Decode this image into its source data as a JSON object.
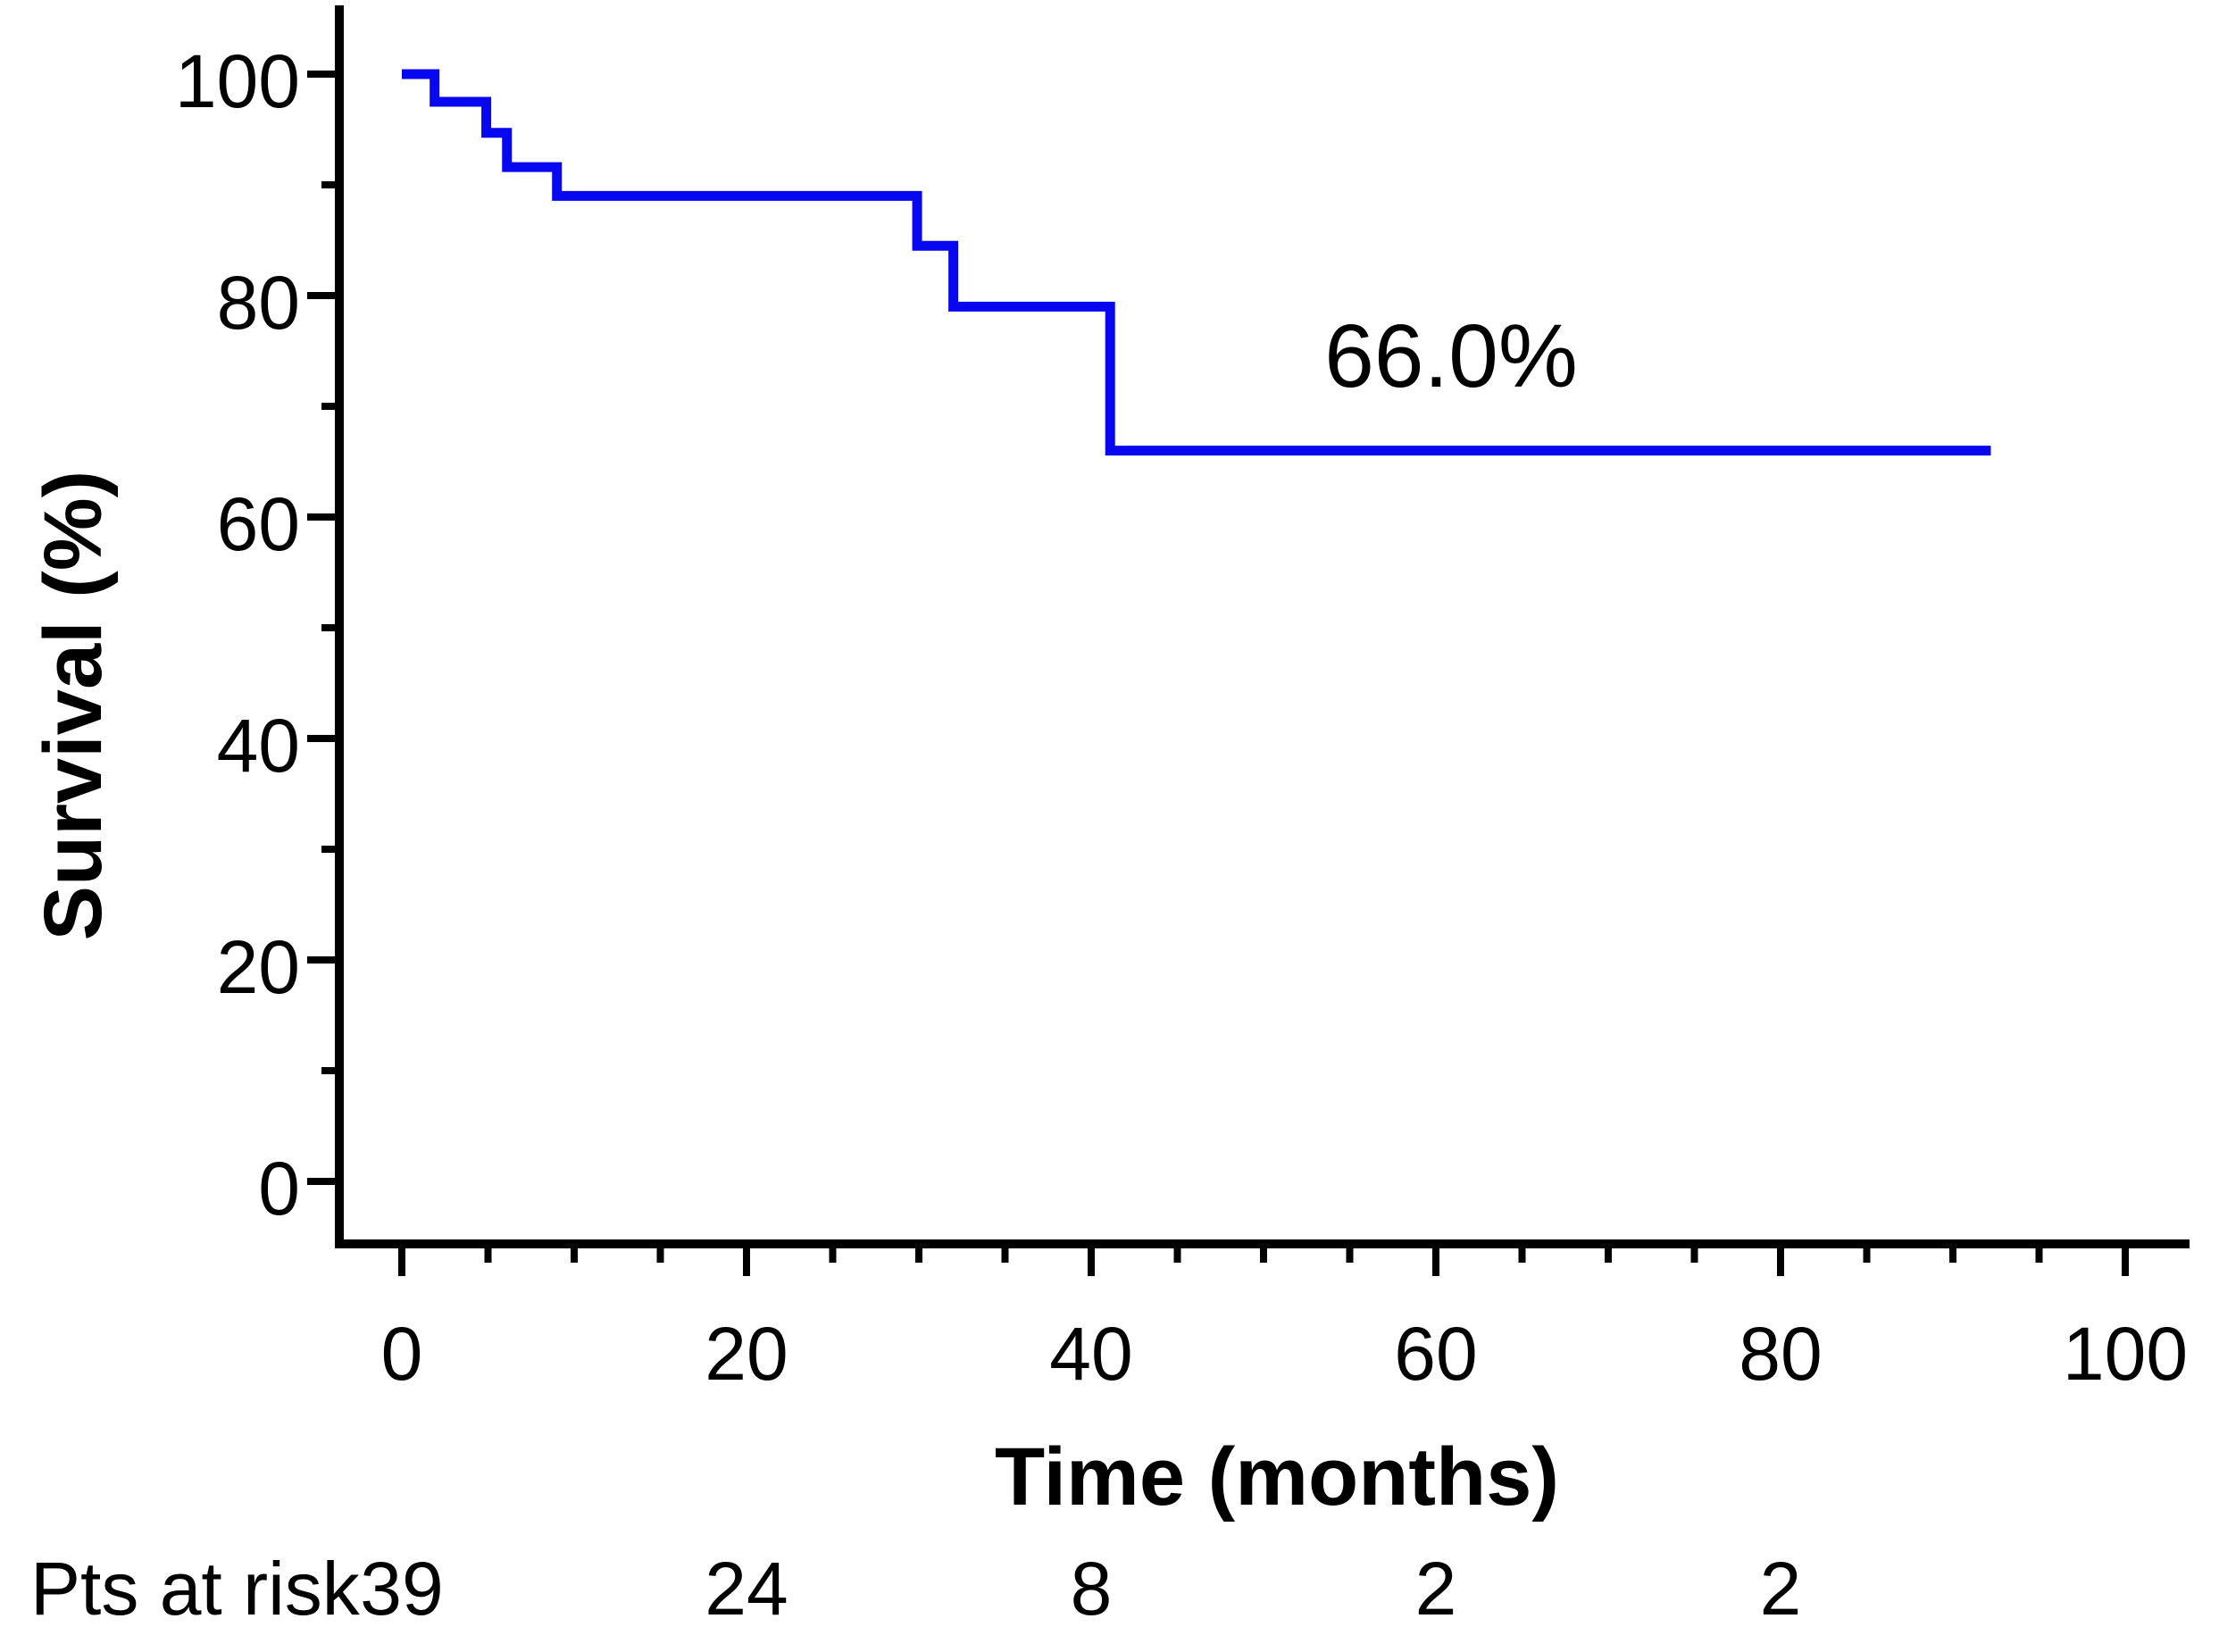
{
  "chart_data": {
    "type": "line",
    "subtype": "kaplan-meier-step",
    "title": "",
    "xlabel": "Time (months)",
    "ylabel": "Survival (%)",
    "xlim": [
      0,
      100
    ],
    "ylim": [
      0,
      100
    ],
    "grid": false,
    "legend": "none",
    "x_major_ticks": [
      0,
      20,
      40,
      60,
      80,
      100
    ],
    "x_tick_labels": [
      "0",
      "20",
      "40",
      "60",
      "80",
      "100"
    ],
    "x_minor_tick_interval": 5,
    "y_major_ticks": [
      0,
      20,
      40,
      60,
      80,
      100
    ],
    "y_tick_labels": [
      "0",
      "20",
      "40",
      "60",
      "80",
      "100"
    ],
    "y_minor_tick_interval": 10,
    "series": [
      {
        "name": "survival-curve",
        "color": "#0808F0",
        "start": {
          "t": 0,
          "s": 100
        },
        "events": [
          {
            "t": 1.9,
            "s": 97.5
          },
          {
            "t": 4.9,
            "s": 94.7
          },
          {
            "t": 6.1,
            "s": 91.6
          },
          {
            "t": 9.0,
            "s": 89.0
          },
          {
            "t": 29.9,
            "s": 84.5
          },
          {
            "t": 32.0,
            "s": 79.0
          },
          {
            "t": 41.1,
            "s": 66.0
          }
        ],
        "t_end": 92.2
      }
    ],
    "annotation": {
      "text": "66.0%"
    }
  },
  "at_risk": {
    "label": "Pts at risk",
    "times": [
      0,
      20,
      40,
      60,
      80
    ],
    "counts": [
      "39",
      "24",
      "8",
      "2",
      "2"
    ]
  },
  "colors": {
    "curve": "#0808F0",
    "axis": "#000000",
    "text": "#000000"
  }
}
